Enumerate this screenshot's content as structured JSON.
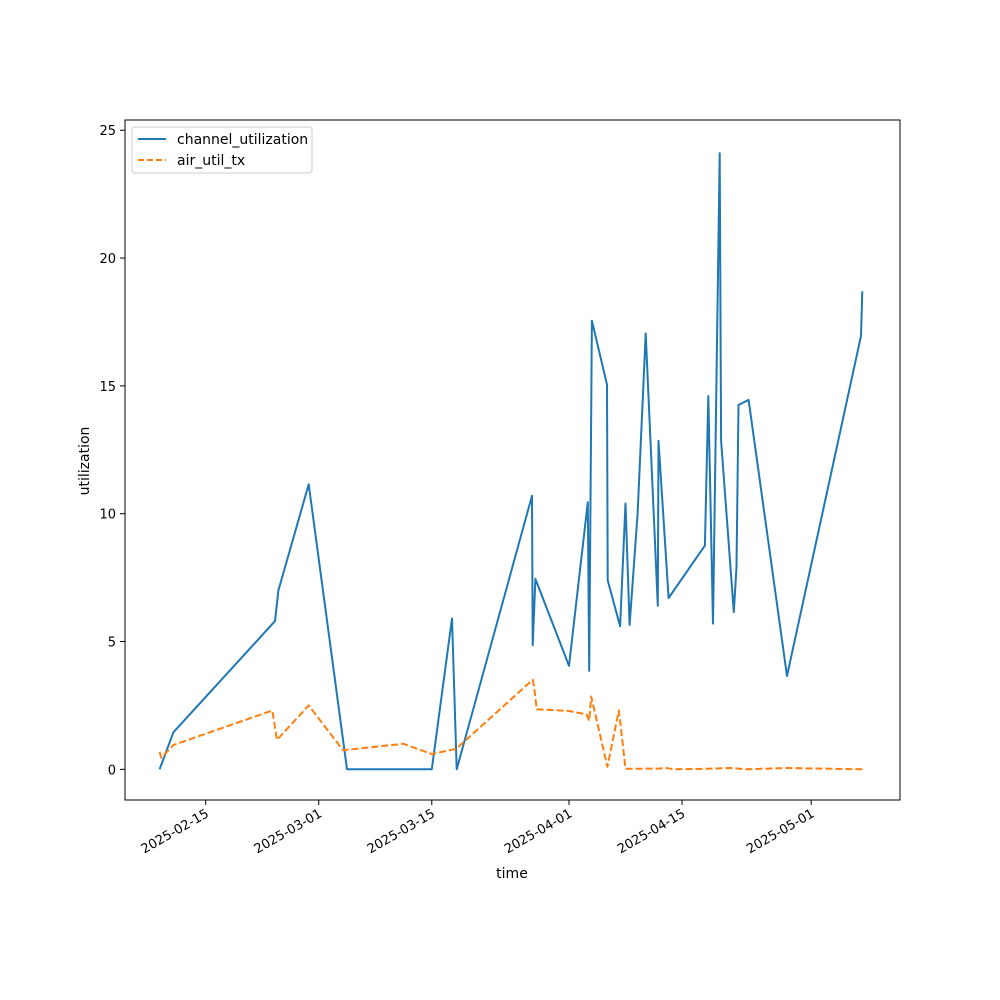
{
  "chart_data": {
    "type": "line",
    "title": "",
    "xlabel": "time",
    "ylabel": "utilization",
    "x_type": "date",
    "xlim": [
      "2025-02-05",
      "2025-05-12"
    ],
    "ylim": [
      -1.2,
      25.4
    ],
    "x_ticks": [
      "2025-02-15",
      "2025-03-01",
      "2025-03-15",
      "2025-04-01",
      "2025-04-15",
      "2025-05-01"
    ],
    "y_ticks": [
      0,
      5,
      10,
      15,
      20,
      25
    ],
    "grid": false,
    "legend_position": "upper-left",
    "series": [
      {
        "name": "channel_utilization",
        "color": "#1f77b4",
        "dash": "solid",
        "points": [
          [
            "2025-02-09T07:00",
            0.0
          ],
          [
            "2025-02-11T00:00",
            1.45
          ],
          [
            "2025-02-23T14:00",
            5.8
          ],
          [
            "2025-02-24T00:00",
            7.0
          ],
          [
            "2025-02-27T18:00",
            11.15
          ],
          [
            "2025-03-04T12:00",
            0.0
          ],
          [
            "2025-03-15T00:00",
            0.0
          ],
          [
            "2025-03-17T12:00",
            5.9
          ],
          [
            "2025-03-18T02:00",
            0.0
          ],
          [
            "2025-03-27T10:00",
            10.7
          ],
          [
            "2025-03-27T12:00",
            4.85
          ],
          [
            "2025-03-27T20:00",
            7.45
          ],
          [
            "2025-04-01T00:00",
            4.05
          ],
          [
            "2025-04-03T08:00",
            10.45
          ],
          [
            "2025-04-03T12:00",
            3.85
          ],
          [
            "2025-04-03T20:00",
            17.55
          ],
          [
            "2025-04-05T17:00",
            15.05
          ],
          [
            "2025-04-05T19:00",
            7.4
          ],
          [
            "2025-04-07T08:00",
            5.6
          ],
          [
            "2025-04-08T00:00",
            10.4
          ],
          [
            "2025-04-08T12:00",
            5.65
          ],
          [
            "2025-04-09T12:00",
            10.0
          ],
          [
            "2025-04-10T12:00",
            17.05
          ],
          [
            "2025-04-12T00:00",
            6.4
          ],
          [
            "2025-04-12T02:00",
            12.85
          ],
          [
            "2025-04-13T08:00",
            6.7
          ],
          [
            "2025-04-17T20:00",
            8.75
          ],
          [
            "2025-04-18T06:00",
            14.6
          ],
          [
            "2025-04-18T20:00",
            5.7
          ],
          [
            "2025-04-19T16:00",
            24.1
          ],
          [
            "2025-04-19T20:00",
            12.85
          ],
          [
            "2025-04-21T10:00",
            6.15
          ],
          [
            "2025-04-21T18:00",
            7.9
          ],
          [
            "2025-04-22T00:00",
            14.25
          ],
          [
            "2025-04-23T06:00",
            14.45
          ],
          [
            "2025-04-28T00:00",
            3.65
          ],
          [
            "2025-05-07T04:00",
            16.95
          ],
          [
            "2025-05-07T08:00",
            18.7
          ]
        ]
      },
      {
        "name": "air_util_tx",
        "color": "#ff7f0e",
        "dash": "dashed",
        "points": [
          [
            "2025-02-09T07:00",
            0.68
          ],
          [
            "2025-02-09T12:00",
            0.45
          ],
          [
            "2025-02-11T00:00",
            0.95
          ],
          [
            "2025-02-23T06:00",
            2.3
          ],
          [
            "2025-02-23T20:00",
            1.15
          ],
          [
            "2025-02-27T18:00",
            2.5
          ],
          [
            "2025-03-04T00:00",
            0.75
          ],
          [
            "2025-03-11T12:00",
            1.0
          ],
          [
            "2025-03-15T00:00",
            0.6
          ],
          [
            "2025-03-18T00:00",
            0.8
          ],
          [
            "2025-03-27T12:00",
            3.5
          ],
          [
            "2025-03-27T16:00",
            3.25
          ],
          [
            "2025-03-28T00:00",
            2.35
          ],
          [
            "2025-04-01T00:00",
            2.28
          ],
          [
            "2025-04-03T04:00",
            2.15
          ],
          [
            "2025-04-03T12:00",
            1.9
          ],
          [
            "2025-04-03T18:00",
            2.85
          ],
          [
            "2025-04-05T18:00",
            0.1
          ],
          [
            "2025-04-07T04:00",
            2.3
          ],
          [
            "2025-04-07T08:00",
            1.9
          ],
          [
            "2025-04-08T00:00",
            0.02
          ],
          [
            "2025-04-12T00:00",
            0.03
          ],
          [
            "2025-04-13T00:00",
            0.05
          ],
          [
            "2025-04-14T00:00",
            0.0
          ],
          [
            "2025-04-18T00:00",
            0.02
          ],
          [
            "2025-04-21T00:00",
            0.05
          ],
          [
            "2025-04-23T00:00",
            0.0
          ],
          [
            "2025-04-28T00:00",
            0.05
          ],
          [
            "2025-05-07T08:00",
            0.0
          ]
        ]
      }
    ]
  }
}
